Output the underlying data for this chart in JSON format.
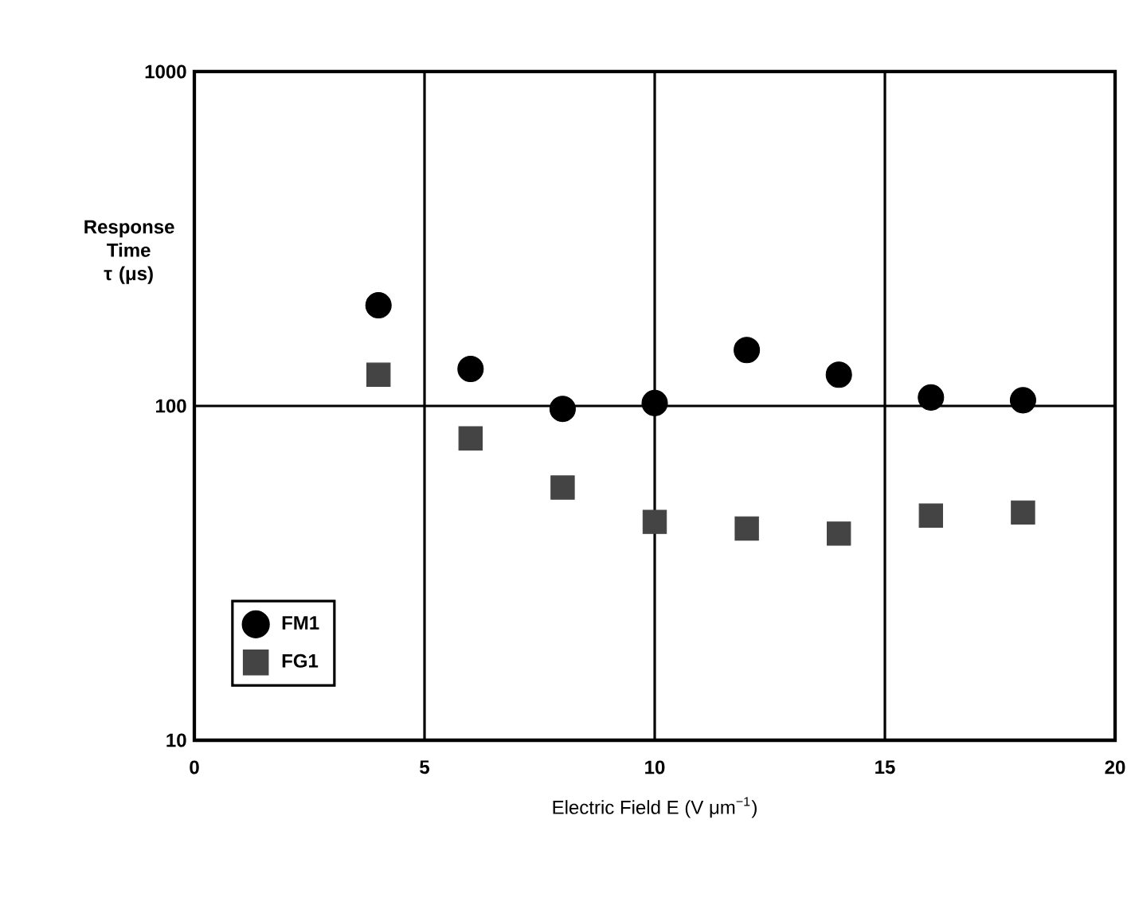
{
  "chart_data": {
    "type": "scatter",
    "xlabel": "Electric Field E (V μm$^{−1}$)",
    "ylabel": "Response Time τ (μs)",
    "log": "y",
    "xlim": [
      0,
      20
    ],
    "ylim": [
      10,
      1000
    ],
    "xticks": [
      0,
      5,
      10,
      15,
      20
    ],
    "yticks": [
      10,
      100,
      1000
    ],
    "grid": true,
    "legend": "bottom left",
    "series": [
      {
        "name": "FM1",
        "color": "#000000",
        "marker": "circle",
        "x": [
          4,
          6,
          8,
          10,
          12,
          14,
          16,
          18
        ],
        "values": [
          200,
          129,
          98,
          102,
          147,
          124,
          106,
          104
        ]
      },
      {
        "name": "FG1",
        "color": "#444444",
        "marker": "square",
        "x": [
          4,
          6,
          8,
          10,
          12,
          14,
          16,
          18
        ],
        "values": [
          124,
          80,
          57,
          45,
          43,
          41.5,
          47,
          48
        ]
      }
    ]
  }
}
